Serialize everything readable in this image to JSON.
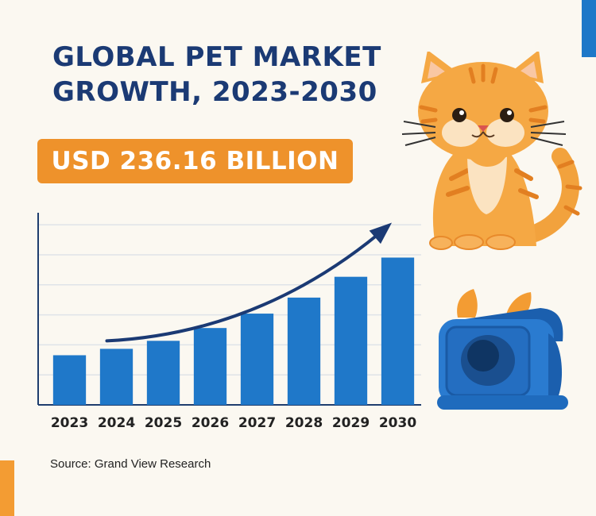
{
  "page": {
    "title": "GLOBAL PET MARKET\nGROWTH, 2023-2030",
    "headline_value": "USD 236.16 BILLION",
    "source": "Source: Grand View Research"
  },
  "colors": {
    "title": "#1b3a74",
    "accent_orange": "#ee922b",
    "bar_blue": "#1f78c9",
    "background": "#fbf8f1"
  },
  "illustrations": [
    "cat-illustration",
    "pet-carrier-illustration"
  ],
  "chart_data": {
    "type": "bar",
    "title": "",
    "xlabel": "",
    "ylabel": "",
    "categories": [
      "2023",
      "2024",
      "2025",
      "2026",
      "2027",
      "2028",
      "2029",
      "2030"
    ],
    "values": [
      31,
      35,
      40,
      48,
      57,
      67,
      80,
      92
    ],
    "ylim": [
      0,
      120
    ],
    "grid": true,
    "trend_arrow": true,
    "legend": "none"
  }
}
